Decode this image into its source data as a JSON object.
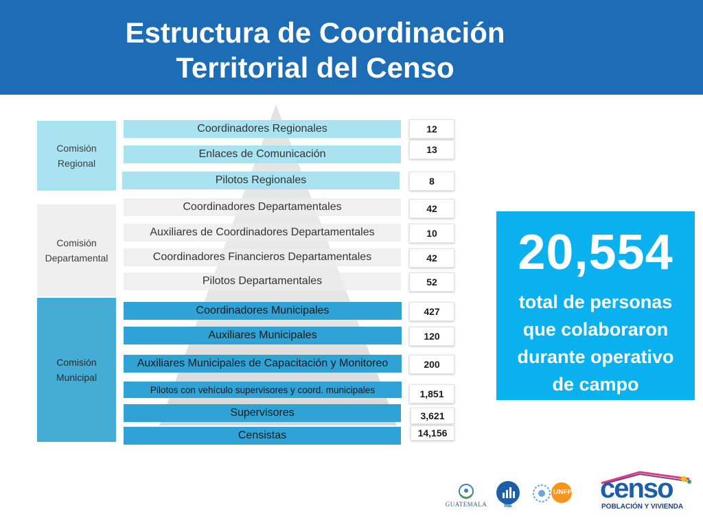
{
  "title": {
    "line1": "Estructura de Coordinación",
    "line2": "Territorial del Censo"
  },
  "groups": [
    {
      "label": "Comisión Regional"
    },
    {
      "label": "Comisión Departamental"
    },
    {
      "label": "Comisión Municipal"
    }
  ],
  "levels": [
    {
      "label": "Coordinadores Regionales",
      "count": "12"
    },
    {
      "label": "Enlaces de Comunicación",
      "count": "13"
    },
    {
      "label": "Pilotos Regionales",
      "count": "8"
    },
    {
      "label": "Coordinadores Departamentales",
      "count": "42"
    },
    {
      "label": "Auxiliares de Coordinadores Departamentales",
      "count": "10"
    },
    {
      "label": "Coordinadores Financieros Departamentales",
      "count": "42"
    },
    {
      "label": "Pilotos Departamentales",
      "count": "52"
    },
    {
      "label": "Coordinadores Municipales",
      "count": "427"
    },
    {
      "label": "Auxiliares Municipales",
      "count": "120"
    },
    {
      "label": "Auxiliares Municipales de Capacitación y Monitoreo",
      "count": "200"
    },
    {
      "label": "Pilotos con vehículo supervisores y coord. municipales",
      "count": "1,851"
    },
    {
      "label": "Supervisores",
      "count": "3,621"
    },
    {
      "label": "Censistas",
      "count": "14,156"
    }
  ],
  "summary": {
    "total": "20,554",
    "caption_line1": "total de personas",
    "caption_line2": "que colaboraron",
    "caption_line3": "durante operativo",
    "caption_line4": "de campo"
  },
  "logos": {
    "guatemala": "GUATEMALA",
    "ine": "INE",
    "unfpa": "UNFPA",
    "censo": "censo",
    "censo_sub": "POBLACIÓN Y VIVIENDA"
  },
  "colors": {
    "header": "#1c6db5",
    "regional": "#a9e3f1",
    "departamental": "#efefef",
    "municipal": "#2fa2d6",
    "summary": "#0ab1ee"
  }
}
